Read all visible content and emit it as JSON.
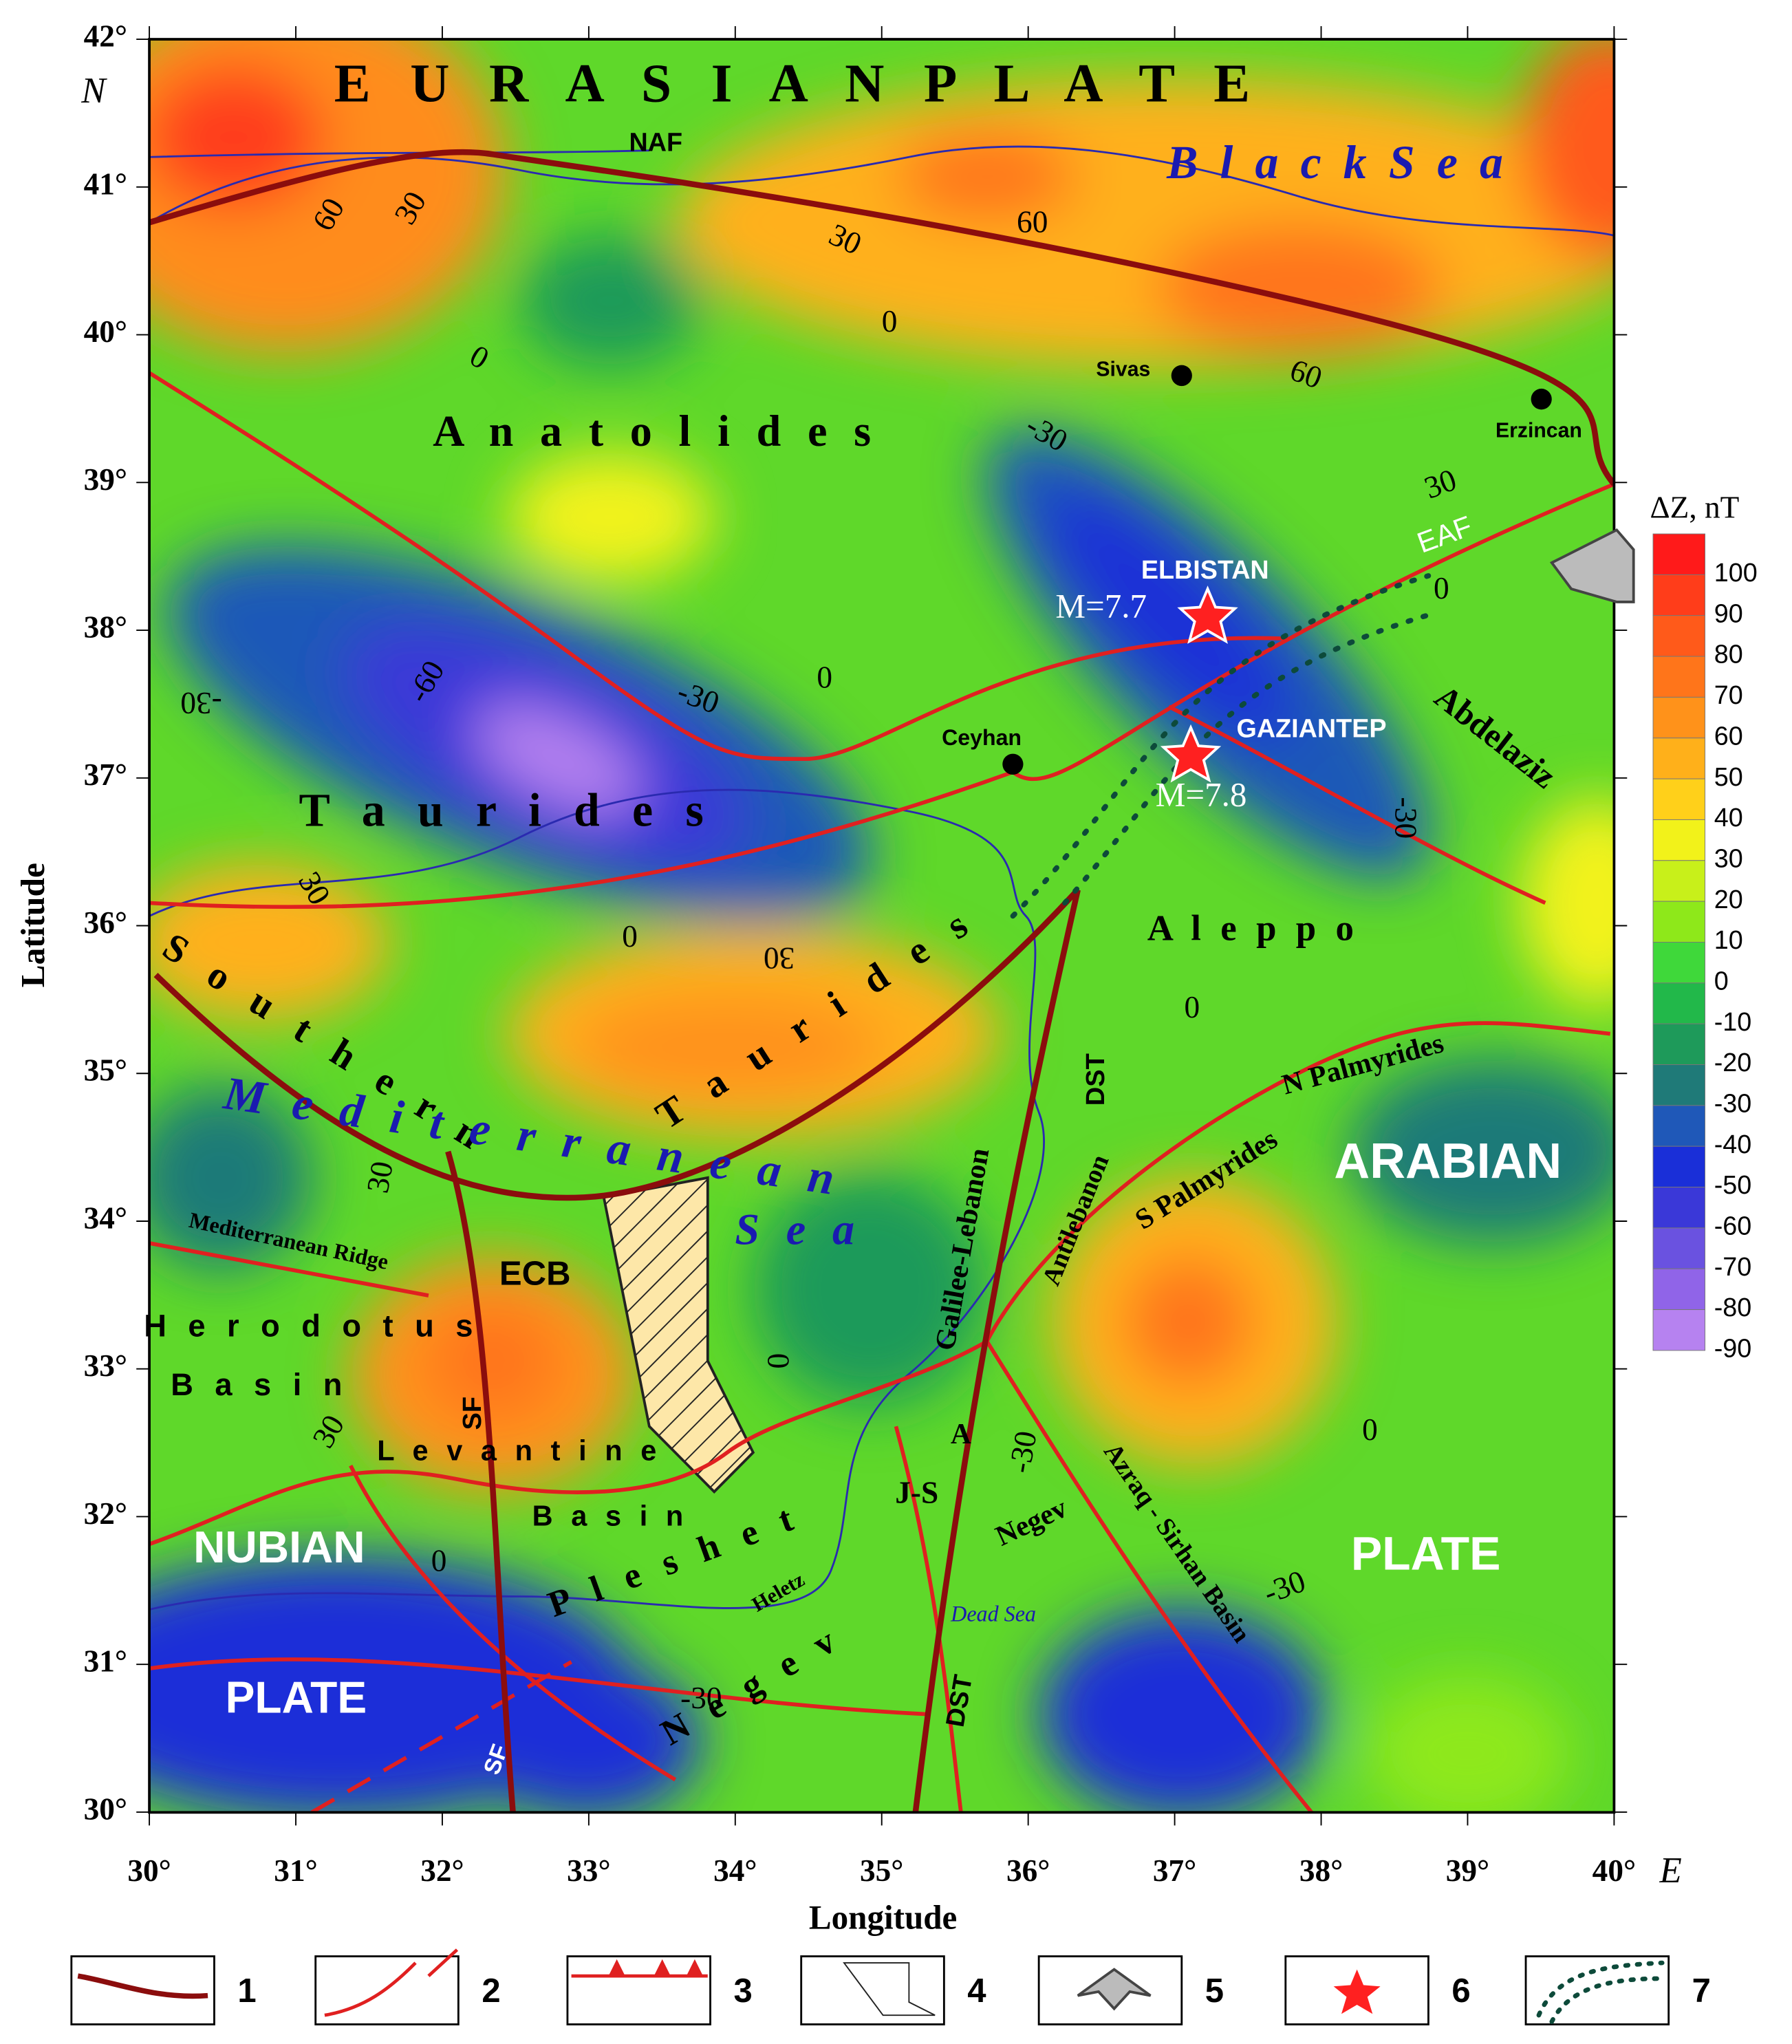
{
  "map": {
    "axes": {
      "x_label": "Longitude",
      "y_label": "Latitude",
      "x_ticks": [
        "30°",
        "31°",
        "32°",
        "33°",
        "34°",
        "35°",
        "36°",
        "37°",
        "38°",
        "39°",
        "40°"
      ],
      "x_unit": "E",
      "y_ticks": [
        "42°",
        "41°",
        "40°",
        "39°",
        "38°",
        "37°",
        "36°",
        "35°",
        "34°",
        "33°",
        "32°",
        "31°",
        "30°"
      ],
      "y_unit": "N"
    },
    "colorbar": {
      "title": "ΔZ, nT",
      "ticks": [
        100,
        90,
        80,
        70,
        60,
        50,
        40,
        30,
        20,
        10,
        0,
        -10,
        -20,
        -30,
        -40,
        -50,
        -60,
        -70,
        -80,
        -90
      ],
      "colors": [
        "#ff1a1a",
        "#ff3d1a",
        "#ff5a1a",
        "#ff751a",
        "#ff921a",
        "#ffb01a",
        "#ffd01a",
        "#f2f21a",
        "#c8f01a",
        "#8ee81a",
        "#3fd83a",
        "#22b84a",
        "#1e9a5a",
        "#1f7a78",
        "#1f58b8",
        "#1a2fd8",
        "#3a38d8",
        "#6a52e0",
        "#9064e8",
        "#b682f0"
      ]
    },
    "labels": [
      "E U R A S I A N   P L A T E",
      "B l a c k   S e a",
      "NAF",
      "A n a t o l i d e s",
      "Sivas",
      "Erzincan",
      "EAF",
      "ELBISTAN",
      "M=7.7",
      "GAZIANTEP",
      "M=7.8",
      "Ceyhan",
      "Abdelaziz",
      "T a u r i d e s",
      "A l e p p o",
      "S o u t h e r n",
      "T a u r i d e s",
      "M e d i t e r r a n e a n",
      "S e a",
      "N Palmyrides",
      "S Palmyrides",
      "ARABIAN",
      "Antilebanon",
      "Galilee-Lebanon",
      "DST",
      "Mediterranean Ridge",
      "ECB",
      "H e r o d o t u s",
      "B a s i n",
      "L e v a n t i n e",
      "B a s i n",
      "SF",
      "J-S",
      "A",
      "Negev",
      "Azraq - Sirhan Basin",
      "NUBIAN",
      "PLATE",
      "PLATE",
      "P l e s h e t",
      "Heletz",
      "Dead Sea",
      "N e g e v",
      "DST",
      "SF"
    ],
    "contour_labels": [
      "60",
      "30",
      "30",
      "60",
      "0",
      "30",
      "-30",
      "60",
      "30",
      "0",
      "-60",
      "-30",
      "-30",
      "0",
      "-30",
      "30",
      "0",
      "30",
      "0",
      "30",
      "0",
      "30",
      "0",
      "-30",
      "-30",
      "0",
      "-30",
      "0"
    ],
    "legend": [
      "1",
      "2",
      "3",
      "4",
      "5",
      "6",
      "7"
    ]
  }
}
